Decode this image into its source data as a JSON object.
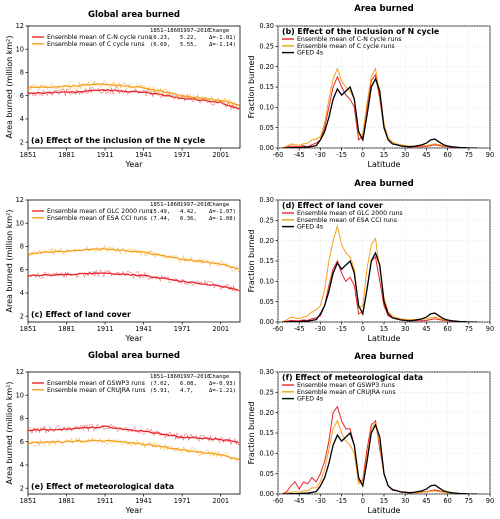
{
  "colors": {
    "red": "#e8242b",
    "orange": "#f5a11c",
    "black": "#000000",
    "axis": "#000000",
    "grid": "#d9d9d9"
  },
  "table_headers": {
    "p1": "1851–1860",
    "p2": "1997–2016",
    "change": "Change"
  },
  "chart_data": [
    {
      "id": "a",
      "type": "line",
      "title": "Global area burned",
      "panel_label": "(a) Effect of the inclusion of the N cycle",
      "xlabel": "Year",
      "ylabel": "Area burned (million km²)",
      "xlim": [
        1851,
        2016
      ],
      "ylim": [
        1.5,
        12
      ],
      "xticks": [
        1851,
        1881,
        1911,
        1941,
        1971,
        2001
      ],
      "yticks": [
        2,
        4,
        6,
        8,
        10,
        12
      ],
      "series": [
        {
          "name": "Ensemble mean of C-N cycle runs",
          "color": "red",
          "p1": "(6.23,",
          "p2": "5.22,",
          "change": "Δ=-1.01)",
          "x": [
            1851,
            1881,
            1911,
            1941,
            1971,
            2001,
            2016
          ],
          "y": [
            6.2,
            6.3,
            6.5,
            6.3,
            5.8,
            5.4,
            4.9
          ]
        },
        {
          "name": "Ensemble mean of C cycle runs",
          "color": "orange",
          "p1": "(6.69,",
          "p2": "5.55,",
          "change": "Δ=-1.14)",
          "x": [
            1851,
            1881,
            1911,
            1941,
            1971,
            2001,
            2016
          ],
          "y": [
            6.7,
            6.8,
            7.0,
            6.7,
            6.0,
            5.6,
            5.2
          ]
        }
      ]
    },
    {
      "id": "b",
      "type": "line",
      "title": "Area burned",
      "panel_label": "(b) Effect of the inclusion of N cycle",
      "xlabel": "Latitude",
      "ylabel": "Fraction burned",
      "xlim": [
        -60,
        90
      ],
      "ylim": [
        0,
        0.3
      ],
      "xticks": [
        -60,
        -45,
        -30,
        -15,
        0,
        15,
        30,
        45,
        60,
        75,
        90
      ],
      "yticks": [
        0,
        0.05,
        0.1,
        0.15,
        0.2,
        0.25,
        0.3
      ],
      "x": [
        -57,
        -54,
        -51,
        -48,
        -45,
        -42,
        -39,
        -36,
        -33,
        -30,
        -27,
        -24,
        -21,
        -18,
        -15,
        -12,
        -9,
        -6,
        -3,
        0,
        3,
        6,
        9,
        12,
        15,
        18,
        21,
        24,
        27,
        30,
        33,
        36,
        39,
        42,
        45,
        48,
        51,
        54,
        57,
        60,
        63,
        66,
        69,
        72,
        75,
        78,
        81
      ],
      "series": [
        {
          "name": "Ensemble mean of C-N cycle runs",
          "color": "red",
          "y": [
            0,
            0.002,
            0.005,
            0.004,
            0.003,
            0.006,
            0.003,
            0.008,
            0.012,
            0.02,
            0.05,
            0.1,
            0.15,
            0.175,
            0.15,
            0.13,
            0.12,
            0.1,
            0.02,
            0.03,
            0.1,
            0.165,
            0.18,
            0.12,
            0.05,
            0.02,
            0.01,
            0.008,
            0.005,
            0.004,
            0.003,
            0.003,
            0.003,
            0.003,
            0.004,
            0.006,
            0.008,
            0.006,
            0.004,
            0.003,
            0.002,
            0.002,
            0.001,
            0.001,
            0.0,
            0.0,
            0.0
          ]
        },
        {
          "name": "Ensemble mean of C cycle runs",
          "color": "orange",
          "y": [
            0,
            0.004,
            0.01,
            0.008,
            0.007,
            0.01,
            0.012,
            0.02,
            0.022,
            0.028,
            0.06,
            0.12,
            0.17,
            0.195,
            0.165,
            0.15,
            0.14,
            0.12,
            0.03,
            0.035,
            0.11,
            0.175,
            0.195,
            0.13,
            0.06,
            0.025,
            0.015,
            0.01,
            0.008,
            0.006,
            0.005,
            0.005,
            0.005,
            0.006,
            0.006,
            0.008,
            0.01,
            0.008,
            0.006,
            0.004,
            0.003,
            0.002,
            0.001,
            0.001,
            0.0,
            0.0,
            0.0
          ]
        },
        {
          "name": "GFED 4s",
          "color": "black",
          "y": [
            0,
            0.0,
            0.001,
            0.001,
            0.001,
            0.002,
            0.002,
            0.004,
            0.006,
            0.02,
            0.04,
            0.075,
            0.12,
            0.145,
            0.13,
            0.14,
            0.15,
            0.12,
            0.04,
            0.02,
            0.08,
            0.15,
            0.17,
            0.14,
            0.05,
            0.02,
            0.01,
            0.008,
            0.005,
            0.004,
            0.003,
            0.004,
            0.006,
            0.008,
            0.012,
            0.02,
            0.022,
            0.015,
            0.008,
            0.005,
            0.003,
            0.002,
            0.001,
            0.001,
            0.0,
            0.0,
            0.0
          ]
        }
      ]
    },
    {
      "id": "c",
      "type": "line",
      "title": "",
      "panel_label": "(c) Effect of land cover",
      "xlabel": "Year",
      "ylabel": "Area burned (million km²)",
      "xlim": [
        1851,
        2016
      ],
      "ylim": [
        1.5,
        12
      ],
      "xticks": [
        1851,
        1881,
        1911,
        1941,
        1971,
        2001
      ],
      "yticks": [
        2,
        4,
        6,
        8,
        10,
        12
      ],
      "series": [
        {
          "name": "Ensemble mean of GLC 2000 runs",
          "color": "red",
          "p1": "(5.49,",
          "p2": "4.42,",
          "change": "Δ=-1.07)",
          "x": [
            1851,
            1881,
            1911,
            1941,
            1971,
            2001,
            2016
          ],
          "y": [
            5.5,
            5.6,
            5.7,
            5.5,
            5.0,
            4.6,
            4.2
          ]
        },
        {
          "name": "Ensemble mean of ESA CCI runs",
          "color": "orange",
          "p1": "(7.44,",
          "p2": "6.36,",
          "change": "Δ=-1.08)",
          "x": [
            1851,
            1881,
            1911,
            1941,
            1971,
            2001,
            2016
          ],
          "y": [
            7.4,
            7.6,
            7.8,
            7.5,
            6.9,
            6.5,
            6.0
          ]
        }
      ]
    },
    {
      "id": "d",
      "type": "line",
      "title": "Area burned",
      "panel_label": "(d) Effect of land cover",
      "xlabel": "Latitude",
      "ylabel": "Fraction burned",
      "xlim": [
        -60,
        90
      ],
      "ylim": [
        0,
        0.3
      ],
      "xticks": [
        -60,
        -45,
        -30,
        -15,
        0,
        15,
        30,
        45,
        60,
        75,
        90
      ],
      "yticks": [
        0,
        0.05,
        0.1,
        0.15,
        0.2,
        0.25,
        0.3
      ],
      "x": [
        -57,
        -54,
        -51,
        -48,
        -45,
        -42,
        -39,
        -36,
        -33,
        -30,
        -27,
        -24,
        -21,
        -18,
        -15,
        -12,
        -9,
        -6,
        -3,
        0,
        3,
        6,
        9,
        12,
        15,
        18,
        21,
        24,
        27,
        30,
        33,
        36,
        39,
        42,
        45,
        48,
        51,
        54,
        57,
        60,
        63,
        66,
        69,
        72,
        75,
        78,
        81
      ],
      "series": [
        {
          "name": "Ensemble mean of GLC 2000 runs",
          "color": "red",
          "y": [
            0,
            0.002,
            0.004,
            0.003,
            0.003,
            0.005,
            0.004,
            0.008,
            0.01,
            0.015,
            0.04,
            0.09,
            0.13,
            0.15,
            0.12,
            0.1,
            0.11,
            0.09,
            0.02,
            0.025,
            0.08,
            0.15,
            0.16,
            0.1,
            0.04,
            0.015,
            0.01,
            0.007,
            0.005,
            0.004,
            0.003,
            0.003,
            0.003,
            0.003,
            0.004,
            0.006,
            0.008,
            0.006,
            0.004,
            0.003,
            0.002,
            0.002,
            0.001,
            0.001,
            0.0,
            0.0,
            0.0
          ]
        },
        {
          "name": "Ensemble mean of ESA CCI runs",
          "color": "orange",
          "y": [
            0,
            0.005,
            0.012,
            0.01,
            0.008,
            0.012,
            0.015,
            0.025,
            0.03,
            0.04,
            0.08,
            0.15,
            0.2,
            0.235,
            0.19,
            0.17,
            0.16,
            0.13,
            0.035,
            0.04,
            0.13,
            0.19,
            0.205,
            0.13,
            0.06,
            0.025,
            0.015,
            0.01,
            0.008,
            0.007,
            0.006,
            0.006,
            0.006,
            0.007,
            0.008,
            0.01,
            0.012,
            0.009,
            0.006,
            0.004,
            0.003,
            0.002,
            0.001,
            0.001,
            0.0,
            0.0,
            0.0
          ]
        },
        {
          "name": "GFED 4s",
          "color": "black",
          "y": [
            0,
            0.0,
            0.001,
            0.001,
            0.001,
            0.002,
            0.002,
            0.004,
            0.006,
            0.02,
            0.04,
            0.075,
            0.12,
            0.145,
            0.13,
            0.14,
            0.15,
            0.12,
            0.04,
            0.02,
            0.08,
            0.15,
            0.17,
            0.14,
            0.05,
            0.02,
            0.01,
            0.008,
            0.005,
            0.004,
            0.003,
            0.004,
            0.006,
            0.008,
            0.012,
            0.02,
            0.022,
            0.015,
            0.008,
            0.005,
            0.003,
            0.002,
            0.001,
            0.001,
            0.0,
            0.0,
            0.0
          ]
        }
      ]
    },
    {
      "id": "e",
      "type": "line",
      "title": "Global area burned",
      "panel_label": "(e) Effect of meteorological data",
      "xlabel": "Year",
      "ylabel": "Area burned (million km²)",
      "xlim": [
        1851,
        2016
      ],
      "ylim": [
        1.5,
        12
      ],
      "xticks": [
        1851,
        1881,
        1911,
        1941,
        1971,
        2001
      ],
      "yticks": [
        2,
        4,
        6,
        8,
        10,
        12
      ],
      "series": [
        {
          "name": "Ensemble mean of GSWP3 runs",
          "color": "red",
          "p1": "(7.02,",
          "p2": "6.08,",
          "change": "Δ=-0.93)",
          "x": [
            1851,
            1881,
            1911,
            1941,
            1971,
            2001,
            2016
          ],
          "y": [
            7.0,
            7.1,
            7.3,
            6.9,
            6.4,
            6.2,
            5.9
          ]
        },
        {
          "name": "Ensemble mean of CRUJRA runs",
          "color": "orange",
          "p1": "(5.91,",
          "p2": "4.7,",
          "change": "Δ=-1.21)",
          "x": [
            1851,
            1881,
            1911,
            1941,
            1971,
            2001,
            2016
          ],
          "y": [
            5.9,
            6.0,
            6.1,
            5.8,
            5.3,
            4.9,
            4.4
          ]
        }
      ]
    },
    {
      "id": "f",
      "type": "line",
      "title": "Area burned",
      "panel_label": "(f) Effect of meteorological data",
      "xlabel": "Latitude",
      "ylabel": "Fraction burned",
      "xlim": [
        -60,
        90
      ],
      "ylim": [
        0,
        0.3
      ],
      "xticks": [
        -60,
        -45,
        -30,
        -15,
        0,
        15,
        30,
        45,
        60,
        75,
        90
      ],
      "yticks": [
        0,
        0.05,
        0.1,
        0.15,
        0.2,
        0.25,
        0.3
      ],
      "x": [
        -57,
        -54,
        -51,
        -48,
        -45,
        -42,
        -39,
        -36,
        -33,
        -30,
        -27,
        -24,
        -21,
        -18,
        -15,
        -12,
        -9,
        -6,
        -3,
        0,
        3,
        6,
        9,
        12,
        15,
        18,
        21,
        24,
        27,
        30,
        33,
        36,
        39,
        42,
        45,
        48,
        51,
        54,
        57,
        60,
        63,
        66,
        69,
        72,
        75,
        78,
        81
      ],
      "series": [
        {
          "name": "Ensemble mean of GSWP3 runs",
          "color": "red",
          "y": [
            0,
            0.005,
            0.02,
            0.03,
            0.012,
            0.03,
            0.025,
            0.04,
            0.03,
            0.05,
            0.08,
            0.13,
            0.2,
            0.215,
            0.18,
            0.16,
            0.16,
            0.12,
            0.03,
            0.035,
            0.11,
            0.17,
            0.18,
            0.11,
            0.05,
            0.02,
            0.012,
            0.008,
            0.006,
            0.005,
            0.004,
            0.004,
            0.004,
            0.005,
            0.006,
            0.008,
            0.01,
            0.008,
            0.005,
            0.004,
            0.003,
            0.002,
            0.001,
            0.001,
            0.0,
            0.0,
            0.0
          ]
        },
        {
          "name": "Ensemble mean of CRUJRA runs",
          "color": "orange",
          "y": [
            0,
            0.002,
            0.004,
            0.006,
            0.004,
            0.008,
            0.008,
            0.015,
            0.015,
            0.03,
            0.06,
            0.11,
            0.16,
            0.18,
            0.15,
            0.13,
            0.12,
            0.1,
            0.025,
            0.03,
            0.09,
            0.16,
            0.175,
            0.12,
            0.05,
            0.02,
            0.01,
            0.008,
            0.005,
            0.004,
            0.003,
            0.003,
            0.003,
            0.004,
            0.005,
            0.007,
            0.008,
            0.006,
            0.004,
            0.003,
            0.002,
            0.002,
            0.001,
            0.001,
            0.0,
            0.0,
            0.0
          ]
        },
        {
          "name": "GFED 4s",
          "color": "black",
          "y": [
            0,
            0.0,
            0.001,
            0.001,
            0.001,
            0.002,
            0.002,
            0.004,
            0.006,
            0.02,
            0.04,
            0.075,
            0.12,
            0.145,
            0.13,
            0.14,
            0.15,
            0.12,
            0.04,
            0.02,
            0.08,
            0.15,
            0.17,
            0.14,
            0.05,
            0.02,
            0.01,
            0.008,
            0.005,
            0.004,
            0.003,
            0.004,
            0.006,
            0.008,
            0.012,
            0.02,
            0.022,
            0.015,
            0.008,
            0.005,
            0.003,
            0.002,
            0.001,
            0.001,
            0.0,
            0.0,
            0.0
          ]
        }
      ]
    }
  ]
}
